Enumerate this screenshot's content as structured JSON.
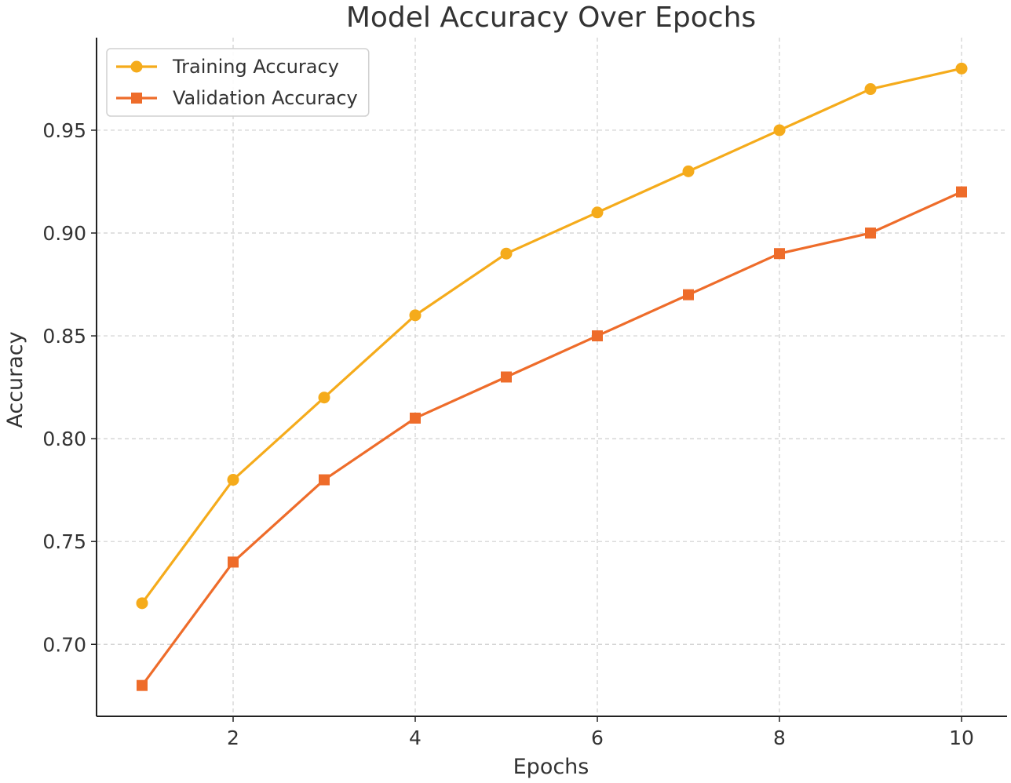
{
  "chart_data": {
    "type": "line",
    "title": "Model Accuracy Over Epochs",
    "xlabel": "Epochs",
    "ylabel": "Accuracy",
    "x": [
      1,
      2,
      3,
      4,
      5,
      6,
      7,
      8,
      9,
      10
    ],
    "xlim": [
      0.5,
      10.5
    ],
    "ylim": [
      0.665,
      0.995
    ],
    "xticks": [
      2,
      4,
      6,
      8,
      10
    ],
    "xtick_labels": [
      "2",
      "4",
      "6",
      "8",
      "10"
    ],
    "yticks": [
      0.7,
      0.75,
      0.8,
      0.85,
      0.9,
      0.95
    ],
    "ytick_labels": [
      "0.70",
      "0.75",
      "0.80",
      "0.85",
      "0.90",
      "0.95"
    ],
    "grid": true,
    "legend_position": "top-left",
    "series": [
      {
        "name": "Training Accuracy",
        "marker": "circle",
        "color": "#F5AB1B",
        "values": [
          0.72,
          0.78,
          0.82,
          0.86,
          0.89,
          0.91,
          0.93,
          0.95,
          0.97,
          0.98
        ]
      },
      {
        "name": "Validation Accuracy",
        "marker": "square",
        "color": "#EE6C2A",
        "values": [
          0.68,
          0.74,
          0.78,
          0.81,
          0.83,
          0.85,
          0.87,
          0.89,
          0.9,
          0.92
        ]
      }
    ]
  }
}
